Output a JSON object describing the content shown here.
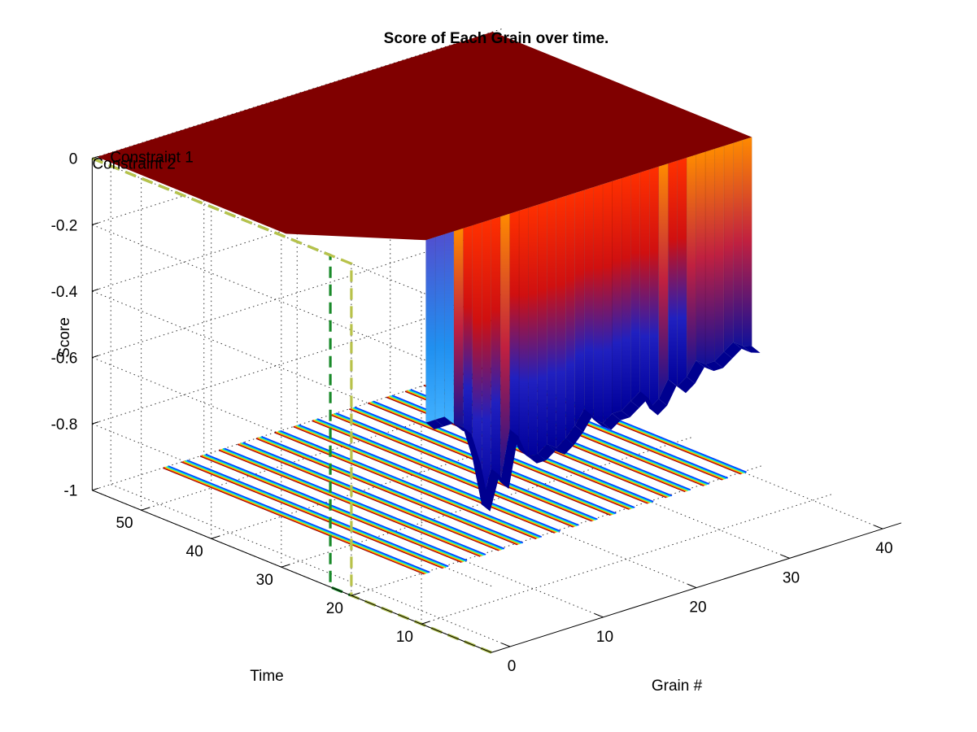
{
  "chart_data": {
    "type": "surface",
    "title": "Score of Each Grain over time.",
    "xlabel": "Grain #",
    "ylabel": "Time",
    "zlabel": "Score",
    "x_ticks": [
      "0",
      "10",
      "20",
      "30",
      "40"
    ],
    "y_ticks": [
      "10",
      "20",
      "30",
      "40",
      "50"
    ],
    "z_ticks": [
      "0",
      "-0.2",
      "-0.4",
      "-0.6",
      "-0.8",
      "-1"
    ],
    "xlim": [
      -2,
      42
    ],
    "ylim": [
      0,
      57
    ],
    "zlim": [
      -1,
      0
    ],
    "grid": true,
    "colormap": "jet",
    "surface": {
      "time_start": 20,
      "time_end": 57,
      "plateau_score": 0,
      "grains": [
        {
          "grain": 6,
          "score": -0.55
        },
        {
          "grain": 7,
          "score": -0.55
        },
        {
          "grain": 8,
          "score": -0.55
        },
        {
          "grain": 9,
          "score": -0.58
        },
        {
          "grain": 10,
          "score": -0.6
        },
        {
          "grain": 11,
          "score": -0.7
        },
        {
          "grain": 12,
          "score": -0.85
        },
        {
          "grain": 13,
          "score": -0.75
        },
        {
          "grain": 14,
          "score": -0.8
        },
        {
          "grain": 15,
          "score": -0.65
        },
        {
          "grain": 16,
          "score": -0.72
        },
        {
          "grain": 17,
          "score": -0.75
        },
        {
          "grain": 18,
          "score": -0.75
        },
        {
          "grain": 19,
          "score": -0.73
        },
        {
          "grain": 20,
          "score": -0.75
        },
        {
          "grain": 21,
          "score": -0.73
        },
        {
          "grain": 22,
          "score": -0.7
        },
        {
          "grain": 23,
          "score": -0.66
        },
        {
          "grain": 24,
          "score": -0.7
        },
        {
          "grain": 25,
          "score": -0.72
        },
        {
          "grain": 26,
          "score": -0.7
        },
        {
          "grain": 27,
          "score": -0.7
        },
        {
          "grain": 28,
          "score": -0.68
        },
        {
          "grain": 29,
          "score": -0.66
        },
        {
          "grain": 30,
          "score": -0.72
        },
        {
          "grain": 31,
          "score": -0.7
        },
        {
          "grain": 32,
          "score": -0.65
        },
        {
          "grain": 33,
          "score": -0.68
        },
        {
          "grain": 34,
          "score": -0.66
        },
        {
          "grain": 35,
          "score": -0.62
        },
        {
          "grain": 36,
          "score": -0.64
        },
        {
          "grain": 37,
          "score": -0.64
        },
        {
          "grain": 38,
          "score": -0.62
        },
        {
          "grain": 39,
          "score": -0.6
        },
        {
          "grain": 40,
          "score": -0.62
        },
        {
          "grain": 41,
          "score": -0.63
        }
      ]
    },
    "constraint_lines": [
      {
        "name": "Constraint 1",
        "color": "#1a8a2a",
        "time": 23,
        "score_low": -1,
        "score_high": 0
      },
      {
        "name": "Constraint 2",
        "color": "#b8c24a",
        "time": 20,
        "score_low": -1,
        "score_high": 0
      }
    ],
    "colors": {
      "plateau": "#800000",
      "low": "#00008f",
      "mid": "#ff3000",
      "cyan": "#00ffff"
    }
  }
}
